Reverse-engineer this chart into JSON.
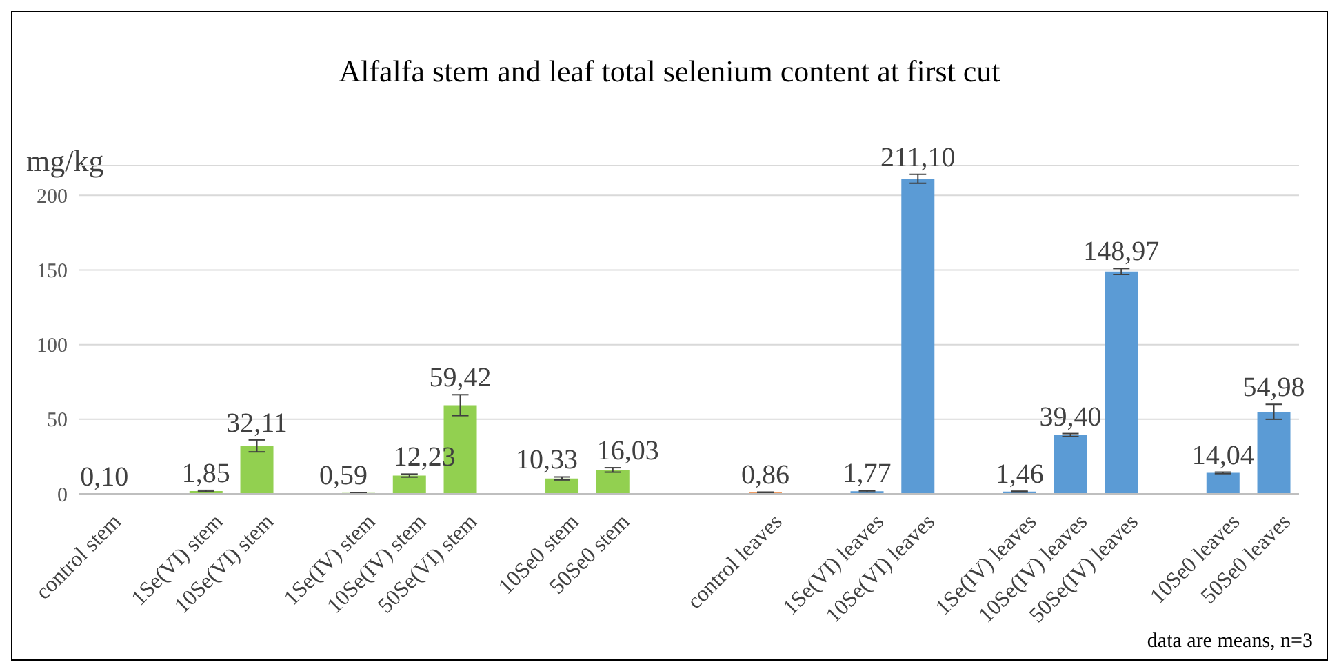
{
  "chart_data": {
    "type": "bar",
    "title": "Alfalfa stem and leaf total selenium content at first cut",
    "ylabel": "mg/kg",
    "categories": [
      "control  stem",
      null,
      "1Se(VI) stem",
      "10Se(VI) stem",
      null,
      "1Se(IV) stem",
      "10Se(IV) stem",
      "50Se(VI) stem",
      null,
      "10Se0 stem",
      "50Se0 stem",
      null,
      null,
      "control leaves",
      null,
      "1Se(VI) leaves",
      "10Se(VI) leaves",
      null,
      "1Se(IV) leaves",
      "10Se(IV) leaves",
      "50Se(IV) leaves",
      null,
      "10Se0 leaves",
      "50Se0 leaves"
    ],
    "values": [
      0.1,
      null,
      1.85,
      32.11,
      null,
      0.59,
      12.23,
      59.42,
      null,
      10.33,
      16.03,
      null,
      null,
      0.86,
      null,
      1.77,
      211.1,
      null,
      1.46,
      39.4,
      148.97,
      null,
      14.04,
      54.98
    ],
    "value_labels": [
      "0,10",
      null,
      "1,85",
      "32,11",
      null,
      "0,59",
      "12,23",
      "59,42",
      null,
      "10,33",
      "16,03",
      null,
      null,
      "0,86",
      null,
      "1,77",
      "211,10",
      null,
      "1,46",
      "39,40",
      "148,97",
      null,
      "14,04",
      "54,98"
    ],
    "errors": [
      null,
      null,
      0.5,
      4,
      null,
      0.3,
      1,
      7,
      null,
      1,
      1.5,
      null,
      null,
      0.3,
      null,
      0.5,
      3,
      null,
      0.3,
      1,
      2,
      null,
      0.5,
      5
    ],
    "colors": [
      "#5b9bd5",
      null,
      "#92d050",
      "#92d050",
      null,
      "#92d050",
      "#92d050",
      "#92d050",
      null,
      "#92d050",
      "#92d050",
      null,
      null,
      "#ed7d31",
      null,
      "#5b9bd5",
      "#5b9bd5",
      null,
      "#5b9bd5",
      "#5b9bd5",
      "#5b9bd5",
      null,
      "#5b9bd5",
      "#5b9bd5"
    ],
    "ylim": [
      0,
      220
    ],
    "yticks": [
      0,
      50,
      100,
      150,
      200
    ],
    "grid": "y",
    "legend": false,
    "annotations": [
      "data are means, n=3"
    ]
  }
}
